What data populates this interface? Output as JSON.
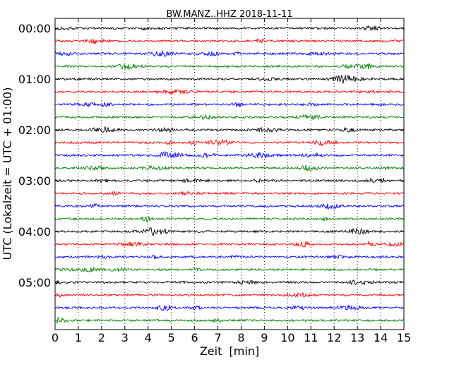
{
  "chart_data": {
    "type": "line",
    "title": "BW.MANZ..HHZ 2018-11-11",
    "xlabel": "Zeit  [min]",
    "ylabel": "UTC (Lokalzeit = UTC + 01:00)",
    "xlim": [
      0,
      15
    ],
    "x_ticks": [
      "0",
      "1",
      "2",
      "3",
      "4",
      "5",
      "6",
      "7",
      "8",
      "9",
      "10",
      "11",
      "12",
      "13",
      "14",
      "15"
    ],
    "y_ticks": [
      {
        "label": "00:00",
        "hour": 0
      },
      {
        "label": "01:00",
        "hour": 1
      },
      {
        "label": "02:00",
        "hour": 2
      },
      {
        "label": "03:00",
        "hour": 3
      },
      {
        "label": "04:00",
        "hour": 4
      },
      {
        "label": "05:00",
        "hour": 5
      }
    ],
    "grid": "vertical-dotted",
    "trace_colors": [
      "#000000",
      "#ff0000",
      "#0000ff",
      "#008000"
    ],
    "trace_start_minutes": [
      0,
      15,
      30,
      45,
      60,
      75,
      90,
      105,
      120,
      135,
      150,
      165,
      180,
      195,
      210,
      225,
      240,
      255,
      270,
      285,
      300,
      315,
      330,
      345
    ]
  }
}
